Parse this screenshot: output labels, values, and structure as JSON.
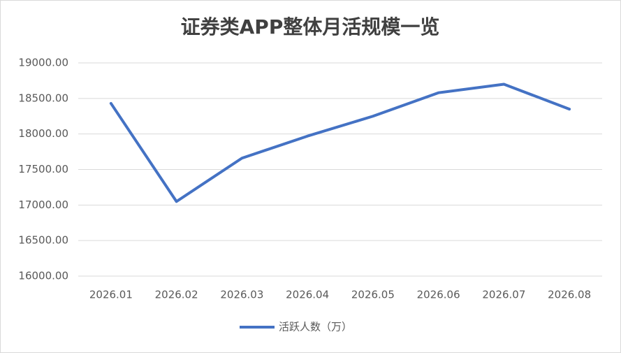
{
  "chart_data": {
    "type": "line",
    "title": "证券类APP整体月活规模一览",
    "categories": [
      "2026.01",
      "2026.02",
      "2026.03",
      "2026.04",
      "2026.05",
      "2026.06",
      "2026.07",
      "2026.08"
    ],
    "series": [
      {
        "name": "活跃人数（万）",
        "color": "#4472c4",
        "values": [
          18430,
          17050,
          17660,
          17970,
          18250,
          18580,
          18700,
          18350
        ]
      }
    ],
    "ylim": [
      16000,
      19000
    ],
    "yticks": [
      {
        "value": 16000,
        "label": "16000.00"
      },
      {
        "value": 16500,
        "label": "16500.00"
      },
      {
        "value": 17000,
        "label": "17000.00"
      },
      {
        "value": 17500,
        "label": "17500.00"
      },
      {
        "value": 18000,
        "label": "18000.00"
      },
      {
        "value": 18500,
        "label": "18500.00"
      },
      {
        "value": 19000,
        "label": "19000.00"
      }
    ],
    "grid": true,
    "legend": "bottom"
  }
}
